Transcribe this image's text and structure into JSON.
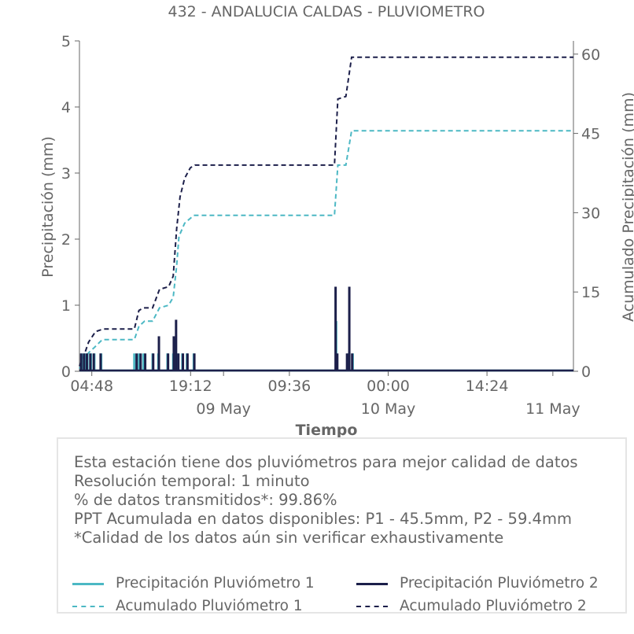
{
  "chart_data": {
    "type": "line",
    "title": "432 - ANDALUCIA CALDAS - PLUVIOMETRO",
    "xlabel": "Tiempo",
    "ylabel_left": "Precipitación (mm)",
    "ylabel_right": "Acumulado Precipitación (mm)",
    "xlim": [
      "2024-05-08 03:00",
      "2024-05-11 03:00"
    ],
    "ylim_left": [
      0,
      5
    ],
    "ylim_right": [
      0,
      62.5
    ],
    "x_ticks": [
      {
        "x": "2024-05-08 04:48",
        "label": "04:48",
        "sublabel": ""
      },
      {
        "x": "2024-05-08 19:12",
        "label": "19:12",
        "sublabel": ""
      },
      {
        "x": "2024-05-09 00:00",
        "label": "",
        "sublabel": "09 May"
      },
      {
        "x": "2024-05-09 09:36",
        "label": "09:36",
        "sublabel": ""
      },
      {
        "x": "2024-05-10 00:00",
        "label": "00:00",
        "sublabel": "10 May"
      },
      {
        "x": "2024-05-10 14:24",
        "label": "14:24",
        "sublabel": ""
      },
      {
        "x": "2024-05-11 00:00",
        "label": "",
        "sublabel": "11 May"
      }
    ],
    "y_ticks_left": [
      0,
      1,
      2,
      3,
      4,
      5
    ],
    "y_ticks_right": [
      0,
      15,
      30,
      45,
      60
    ],
    "colors": {
      "p1": "#4cb8c4",
      "p2": "#1c1f4a",
      "axis": "#666666"
    },
    "series": [
      {
        "name": "Precipitación Pluviómetro 1",
        "axis": "left",
        "style": "solid",
        "x": [
          "2024-05-08 03:20",
          "2024-05-08 03:45",
          "2024-05-08 04:10",
          "2024-05-08 04:40",
          "2024-05-08 05:10",
          "2024-05-08 06:10",
          "2024-05-08 11:00",
          "2024-05-08 11:40",
          "2024-05-08 12:20",
          "2024-05-08 13:40",
          "2024-05-08 14:30",
          "2024-05-08 15:50",
          "2024-05-08 16:40",
          "2024-05-08 17:00",
          "2024-05-08 17:20",
          "2024-05-08 18:00",
          "2024-05-08 18:40",
          "2024-05-08 19:40",
          "2024-05-09 16:25",
          "2024-05-09 18:10",
          "2024-05-09 18:50"
        ],
        "y": [
          0.27,
          0.27,
          0.27,
          0.27,
          0.27,
          0.27,
          0.27,
          0.27,
          0.27,
          0.27,
          0.27,
          0.27,
          0.27,
          0.5,
          0.27,
          0.27,
          0.27,
          0.27,
          0.76,
          0.27,
          0.27
        ]
      },
      {
        "name": "Precipitación Pluviómetro 2",
        "axis": "left",
        "style": "solid",
        "x": [
          "2024-05-08 03:15",
          "2024-05-08 03:40",
          "2024-05-08 04:05",
          "2024-05-08 04:35",
          "2024-05-08 05:05",
          "2024-05-08 06:05",
          "2024-05-08 11:20",
          "2024-05-08 11:55",
          "2024-05-08 12:35",
          "2024-05-08 13:45",
          "2024-05-08 14:35",
          "2024-05-08 15:55",
          "2024-05-08 16:45",
          "2024-05-08 17:05",
          "2024-05-08 17:25",
          "2024-05-08 18:05",
          "2024-05-08 18:45",
          "2024-05-08 19:45",
          "2024-05-09 16:20",
          "2024-05-09 16:35",
          "2024-05-09 18:00",
          "2024-05-09 18:20",
          "2024-05-09 18:45"
        ],
        "y": [
          0.27,
          0.27,
          0.27,
          0.27,
          0.27,
          0.27,
          0.27,
          0.27,
          0.27,
          0.27,
          0.53,
          0.27,
          0.53,
          0.78,
          0.27,
          0.27,
          0.27,
          0.27,
          1.28,
          0.27,
          0.27,
          1.28,
          0.27
        ]
      },
      {
        "name": "Acumulado Pluviómetro 1",
        "axis": "right",
        "style": "dashed",
        "x": [
          "2024-05-08 03:00",
          "2024-05-08 03:40",
          "2024-05-08 04:20",
          "2024-05-08 05:10",
          "2024-05-08 06:20",
          "2024-05-08 11:00",
          "2024-05-08 11:40",
          "2024-05-08 12:30",
          "2024-05-08 13:40",
          "2024-05-08 14:40",
          "2024-05-08 16:00",
          "2024-05-08 16:40",
          "2024-05-08 17:10",
          "2024-05-08 17:30",
          "2024-05-08 18:20",
          "2024-05-08 19:40",
          "2024-05-09 16:10",
          "2024-05-09 16:40",
          "2024-05-09 17:50",
          "2024-05-09 18:40",
          "2024-05-11 03:00"
        ],
        "y": [
          0.5,
          2.0,
          3.5,
          4.5,
          6.0,
          6.0,
          8.5,
          9.5,
          9.5,
          12.0,
          12.5,
          14.0,
          20.0,
          25.5,
          28.0,
          29.5,
          29.5,
          39.0,
          39.0,
          45.5,
          45.5
        ]
      },
      {
        "name": "Acumulado Pluviómetro 2",
        "axis": "right",
        "style": "dashed",
        "x": [
          "2024-05-08 03:00",
          "2024-05-08 03:40",
          "2024-05-08 04:20",
          "2024-05-08 05:20",
          "2024-05-08 06:30",
          "2024-05-08 11:00",
          "2024-05-08 11:40",
          "2024-05-08 12:20",
          "2024-05-08 13:40",
          "2024-05-08 14:40",
          "2024-05-08 16:00",
          "2024-05-08 16:40",
          "2024-05-08 17:10",
          "2024-05-08 17:40",
          "2024-05-08 18:20",
          "2024-05-08 19:10",
          "2024-05-08 19:50",
          "2024-05-09 16:10",
          "2024-05-09 16:40",
          "2024-05-09 17:50",
          "2024-05-09 18:40",
          "2024-05-11 03:00"
        ],
        "y": [
          1.0,
          3.0,
          5.5,
          7.5,
          8.0,
          8.0,
          11.5,
          12.0,
          12.0,
          15.5,
          16.0,
          18.0,
          27.0,
          33.0,
          36.5,
          38.5,
          39.0,
          39.0,
          51.5,
          52.0,
          59.4,
          59.4
        ]
      }
    ]
  },
  "info": {
    "lines": [
      "Esta estación tiene dos pluviómetros para mejor calidad de datos",
      "Resolución temporal: 1 minuto",
      "% de datos transmitidos*: 99.86%",
      "PPT Acumulada en datos disponibles: P1 - 45.5mm, P2 - 59.4mm",
      "*Calidad de los datos aún sin verificar exhaustivamente"
    ]
  },
  "legend": {
    "items": [
      {
        "label": "Precipitación Pluviómetro 1",
        "color": "#4cb8c4",
        "style": "solid"
      },
      {
        "label": "Precipitación Pluviómetro 2",
        "color": "#1c1f4a",
        "style": "solid"
      },
      {
        "label": "Acumulado Pluviómetro 1",
        "color": "#4cb8c4",
        "style": "dashed"
      },
      {
        "label": "Acumulado Pluviómetro 2",
        "color": "#1c1f4a",
        "style": "dashed"
      }
    ]
  }
}
